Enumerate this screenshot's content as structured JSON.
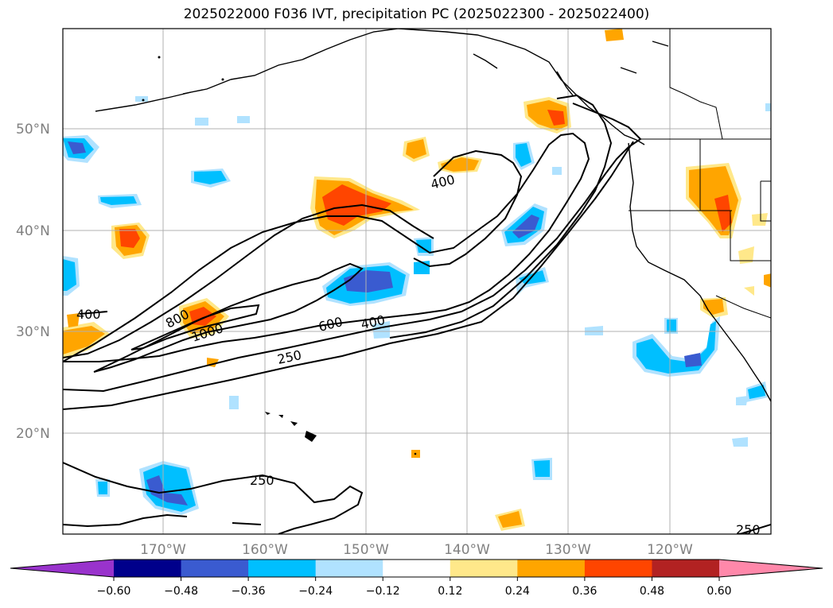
{
  "title": "2025022000 F036 IVT, precipitation PC (2025022300 - 2025022400)",
  "lat_labels": [
    "50°N",
    "40°N",
    "30°N",
    "20°N"
  ],
  "lon_labels": [
    "170°W",
    "160°W",
    "150°W",
    "140°W",
    "130°W",
    "120°W"
  ],
  "contour_labels": [
    "400",
    "400",
    "800",
    "1000",
    "600",
    "400",
    "250",
    "250",
    "250"
  ],
  "colorbar": {
    "ticks": [
      "−0.60",
      "−0.48",
      "−0.36",
      "−0.24",
      "−0.12",
      "0.12",
      "0.24",
      "0.36",
      "0.48",
      "0.60"
    ],
    "colors": [
      "#9933cc",
      "#00008b",
      "#3a5bd0",
      "#00bfff",
      "#b0e2ff",
      "#ffffff",
      "#ffe88a",
      "#ffa500",
      "#ff4500",
      "#b22222",
      "#ff88aa"
    ]
  }
}
